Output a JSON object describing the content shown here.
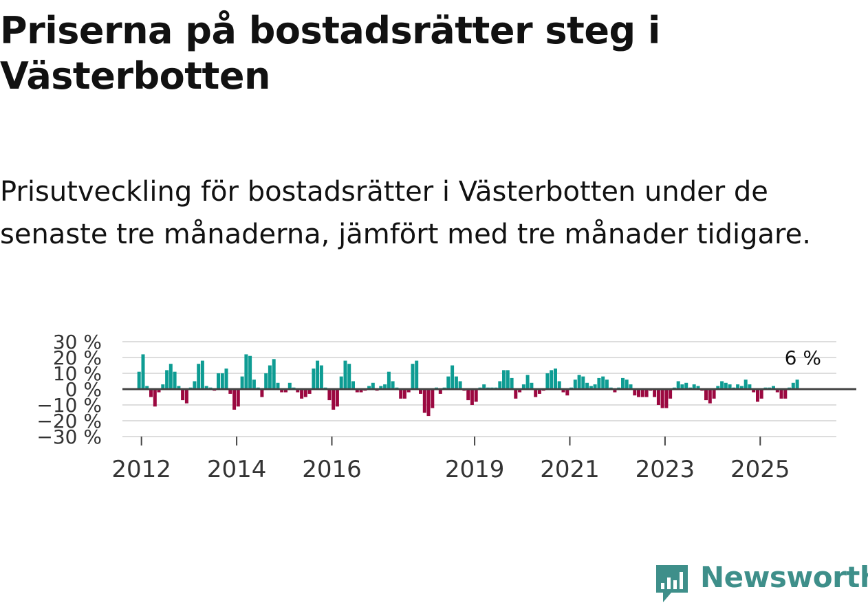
{
  "title": "Priserna på bostadsrätter steg i Västerbotten",
  "subtitle": "Prisutveckling för bostadsrätter i Västerbotten under de senaste tre månaderna, jämfört med tre månader tidigare.",
  "brand": {
    "name": "Newsworthy",
    "color": "#3e8f8a"
  },
  "colors": {
    "positive": "#0e9c93",
    "negative": "#9b0840",
    "grid": "#dddddd",
    "zero": "#444444"
  },
  "chart_data": {
    "type": "bar",
    "title": "",
    "xlabel": "",
    "ylabel": "",
    "unit": "%",
    "ylim": [
      -30,
      30
    ],
    "y_ticks": [
      30,
      20,
      10,
      0,
      -10,
      -20,
      -30
    ],
    "y_tick_labels": [
      "30 %",
      "20 %",
      "10 %",
      "0 %",
      "−10 %",
      "−20 %",
      "−30 %"
    ],
    "x_start_year": 2011.6,
    "x_end_year": 2026.6,
    "x_ticks": [
      {
        "label": "2012",
        "year": 2012
      },
      {
        "label": "2014",
        "year": 2014
      },
      {
        "label": "2016",
        "year": 2016
      },
      {
        "label": "2019",
        "year": 2019
      },
      {
        "label": "2021",
        "year": 2021
      },
      {
        "label": "2023",
        "year": 2023
      },
      {
        "label": "2025",
        "year": 2025
      }
    ],
    "start_year": 2011.95,
    "step_years": 0.0833,
    "values": [
      11,
      22,
      2,
      -5,
      -11,
      -2,
      3,
      12,
      16,
      11,
      2,
      -7,
      -9,
      1,
      5,
      16,
      18,
      2,
      1,
      -1,
      10,
      10,
      13,
      -3,
      -13,
      -11,
      8,
      22,
      21,
      6,
      1,
      -5,
      10,
      15,
      19,
      4,
      -2,
      -2,
      4,
      1,
      -2,
      -6,
      -5,
      -3,
      13,
      18,
      15,
      1,
      -7,
      -13,
      -11,
      8,
      18,
      16,
      5,
      -2,
      -2,
      -1,
      2,
      4,
      -1,
      2,
      3,
      11,
      5,
      1,
      -6,
      -6,
      -2,
      16,
      18,
      -3,
      -15,
      -17,
      -12,
      1,
      -3,
      1,
      8,
      15,
      8,
      5,
      -1,
      -7,
      -10,
      -8,
      1,
      3,
      1,
      1,
      1,
      5,
      12,
      12,
      7,
      -6,
      -2,
      3,
      9,
      4,
      -5,
      -3,
      -1,
      10,
      12,
      13,
      5,
      -2,
      -4,
      1,
      6,
      9,
      8,
      4,
      2,
      3,
      7,
      8,
      6,
      1,
      -2,
      1,
      7,
      6,
      3,
      -4,
      -5,
      -5,
      -5,
      -1,
      -5,
      -10,
      -12,
      -12,
      -6,
      1,
      5,
      3,
      4,
      1,
      3,
      2,
      -1,
      -7,
      -9,
      -6,
      2,
      5,
      4,
      3,
      1,
      3,
      2,
      6,
      3,
      -2,
      -8,
      -6,
      1,
      1,
      2,
      -2,
      -6,
      -6,
      1,
      4,
      6
    ],
    "last_label": "6 %"
  }
}
